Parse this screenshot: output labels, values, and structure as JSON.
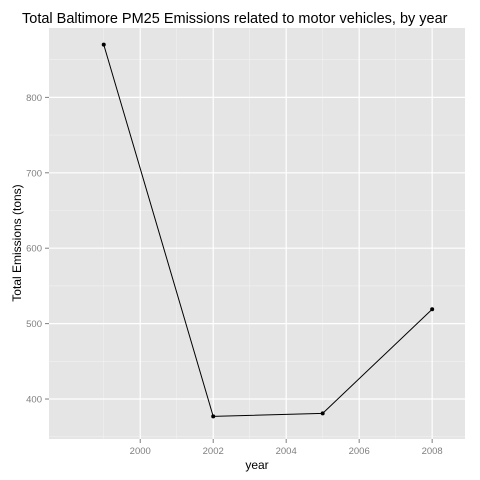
{
  "chart_data": {
    "type": "line",
    "title": "Total Baltimore PM25 Emissions related to motor vehicles, by year",
    "xlabel": "year",
    "ylabel": "Total Emissions (tons)",
    "x": [
      1999,
      2002,
      2005,
      2008
    ],
    "series": [
      {
        "values": [
          870,
          377,
          381,
          519
        ]
      }
    ],
    "xlim": [
      1997.5,
      2008.9
    ],
    "ylim": [
      347,
      892
    ],
    "xticks": [
      2000,
      2002,
      2004,
      2006,
      2008
    ],
    "yticks": [
      400,
      500,
      600,
      700,
      800
    ],
    "grid": true,
    "legend": "none",
    "colors": {
      "panel": "#e5e5e5",
      "grid_major": "#ffffff",
      "grid_minor": "#f2f2f2",
      "line": "#000000",
      "point": "#000000",
      "tick_label": "#7f7f7f",
      "tick_mark": "#7f7f7f"
    }
  }
}
